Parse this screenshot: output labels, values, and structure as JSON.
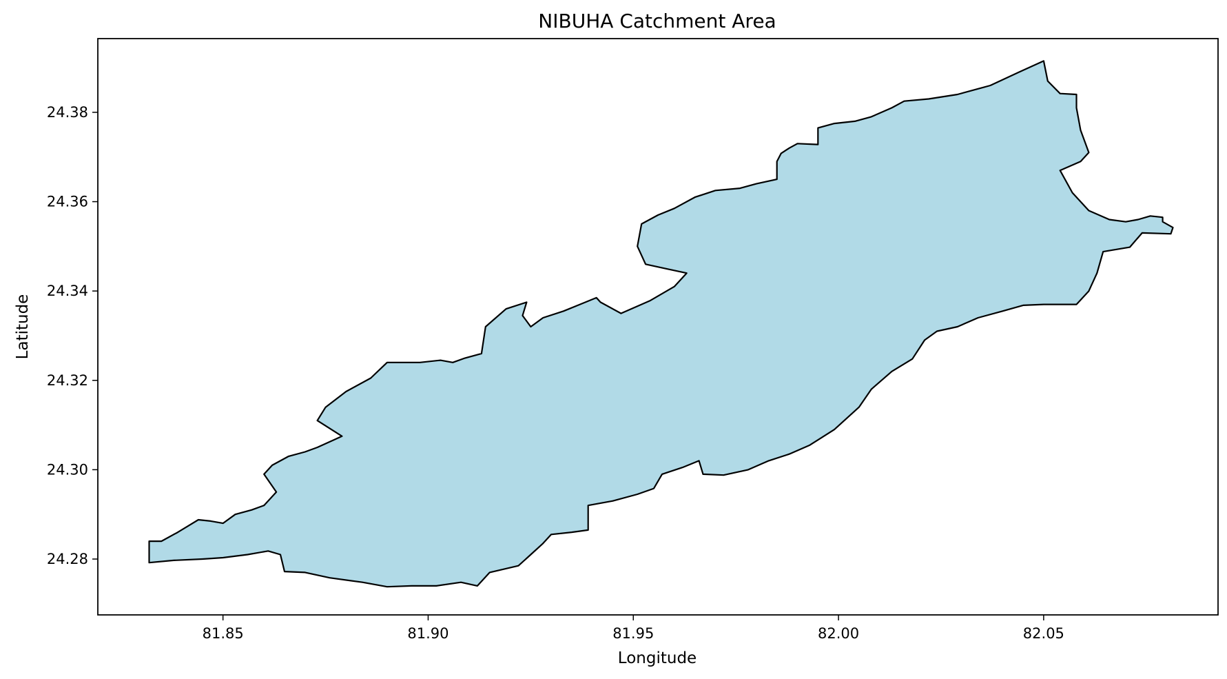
{
  "chart_data": {
    "type": "map",
    "title": "NIBUHA Catchment Area",
    "xlabel": "Longitude",
    "ylabel": "Latitude",
    "xlim": [
      81.8195,
      82.0925
    ],
    "ylim": [
      24.2675,
      24.3965
    ],
    "x_ticks": [
      81.85,
      81.9,
      81.95,
      82.0,
      82.05
    ],
    "x_tick_labels": [
      "81.85",
      "81.90",
      "81.95",
      "82.00",
      "82.05"
    ],
    "y_ticks": [
      24.28,
      24.3,
      24.32,
      24.34,
      24.36,
      24.38
    ],
    "y_tick_labels": [
      "24.28",
      "24.30",
      "24.32",
      "24.34",
      "24.36",
      "24.38"
    ],
    "grid": false,
    "fill_color": "#add8e6",
    "edge_color": "#000000",
    "boundary": [
      [
        81.832,
        24.2792
      ],
      [
        81.838,
        24.2797
      ],
      [
        81.845,
        24.28
      ],
      [
        81.85,
        24.2803
      ],
      [
        81.856,
        24.281
      ],
      [
        81.861,
        24.2818
      ],
      [
        81.864,
        24.281
      ],
      [
        81.865,
        24.2772
      ],
      [
        81.87,
        24.277
      ],
      [
        81.876,
        24.2758
      ],
      [
        81.884,
        24.2748
      ],
      [
        81.89,
        24.2738
      ],
      [
        81.896,
        24.274
      ],
      [
        81.902,
        24.274
      ],
      [
        81.908,
        24.2748
      ],
      [
        81.912,
        24.274
      ],
      [
        81.915,
        24.277
      ],
      [
        81.922,
        24.2785
      ],
      [
        81.925,
        24.281
      ],
      [
        81.928,
        24.2835
      ],
      [
        81.93,
        24.2855
      ],
      [
        81.935,
        24.286
      ],
      [
        81.939,
        24.2865
      ],
      [
        81.939,
        24.292
      ],
      [
        81.945,
        24.293
      ],
      [
        81.951,
        24.2945
      ],
      [
        81.955,
        24.2958
      ],
      [
        81.957,
        24.299
      ],
      [
        81.962,
        24.3005
      ],
      [
        81.966,
        24.302
      ],
      [
        81.967,
        24.299
      ],
      [
        81.972,
        24.2988
      ],
      [
        81.978,
        24.3
      ],
      [
        81.983,
        24.302
      ],
      [
        81.988,
        24.3035
      ],
      [
        81.993,
        24.3055
      ],
      [
        81.999,
        24.309
      ],
      [
        82.005,
        24.314
      ],
      [
        82.008,
        24.318
      ],
      [
        82.013,
        24.322
      ],
      [
        82.018,
        24.3248
      ],
      [
        82.021,
        24.329
      ],
      [
        82.024,
        24.331
      ],
      [
        82.029,
        24.332
      ],
      [
        82.034,
        24.334
      ],
      [
        82.04,
        24.3355
      ],
      [
        82.045,
        24.3368
      ],
      [
        82.05,
        24.337
      ],
      [
        82.058,
        24.337
      ],
      [
        82.061,
        24.34
      ],
      [
        82.063,
        24.344
      ],
      [
        82.0645,
        24.3488
      ],
      [
        82.071,
        24.3498
      ],
      [
        82.074,
        24.353
      ],
      [
        82.081,
        24.3528
      ],
      [
        82.0815,
        24.3542
      ],
      [
        82.079,
        24.3555
      ],
      [
        82.079,
        24.3565
      ],
      [
        82.076,
        24.3568
      ],
      [
        82.073,
        24.356
      ],
      [
        82.07,
        24.3555
      ],
      [
        82.066,
        24.356
      ],
      [
        82.061,
        24.358
      ],
      [
        82.057,
        24.362
      ],
      [
        82.054,
        24.367
      ],
      [
        82.059,
        24.369
      ],
      [
        82.061,
        24.371
      ],
      [
        82.059,
        24.376
      ],
      [
        82.058,
        24.381
      ],
      [
        82.058,
        24.384
      ],
      [
        82.054,
        24.3842
      ],
      [
        82.051,
        24.387
      ],
      [
        82.05,
        24.3915
      ],
      [
        82.044,
        24.389
      ],
      [
        82.037,
        24.386
      ],
      [
        82.029,
        24.384
      ],
      [
        82.022,
        24.383
      ],
      [
        82.016,
        24.3825
      ],
      [
        82.013,
        24.381
      ],
      [
        82.008,
        24.379
      ],
      [
        82.004,
        24.378
      ],
      [
        81.999,
        24.3775
      ],
      [
        81.995,
        24.3765
      ],
      [
        81.995,
        24.3728
      ],
      [
        81.99,
        24.373
      ],
      [
        81.988,
        24.372
      ],
      [
        81.986,
        24.3708
      ],
      [
        81.985,
        24.369
      ],
      [
        81.985,
        24.365
      ],
      [
        81.98,
        24.364
      ],
      [
        81.976,
        24.363
      ],
      [
        81.97,
        24.3625
      ],
      [
        81.965,
        24.361
      ],
      [
        81.96,
        24.3585
      ],
      [
        81.956,
        24.357
      ],
      [
        81.952,
        24.355
      ],
      [
        81.951,
        24.35
      ],
      [
        81.953,
        24.346
      ],
      [
        81.958,
        24.345
      ],
      [
        81.963,
        24.344
      ],
      [
        81.96,
        24.341
      ],
      [
        81.954,
        24.3378
      ],
      [
        81.947,
        24.335
      ],
      [
        81.942,
        24.3375
      ],
      [
        81.941,
        24.3385
      ],
      [
        81.937,
        24.337
      ],
      [
        81.933,
        24.3355
      ],
      [
        81.928,
        24.334
      ],
      [
        81.925,
        24.332
      ],
      [
        81.923,
        24.3345
      ],
      [
        81.924,
        24.3375
      ],
      [
        81.919,
        24.336
      ],
      [
        81.914,
        24.332
      ],
      [
        81.913,
        24.326
      ],
      [
        81.909,
        24.325
      ],
      [
        81.906,
        24.324
      ],
      [
        81.903,
        24.3245
      ],
      [
        81.898,
        24.324
      ],
      [
        81.89,
        24.324
      ],
      [
        81.886,
        24.3205
      ],
      [
        81.88,
        24.3175
      ],
      [
        81.875,
        24.314
      ],
      [
        81.873,
        24.311
      ],
      [
        81.879,
        24.3075
      ],
      [
        81.873,
        24.305
      ],
      [
        81.87,
        24.304
      ],
      [
        81.866,
        24.303
      ],
      [
        81.862,
        24.301
      ],
      [
        81.86,
        24.299
      ],
      [
        81.863,
        24.295
      ],
      [
        81.86,
        24.292
      ],
      [
        81.857,
        24.291
      ],
      [
        81.853,
        24.29
      ],
      [
        81.85,
        24.288
      ],
      [
        81.847,
        24.2885
      ],
      [
        81.844,
        24.2888
      ],
      [
        81.839,
        24.286
      ],
      [
        81.835,
        24.284
      ],
      [
        81.832,
        24.284
      ]
    ]
  }
}
